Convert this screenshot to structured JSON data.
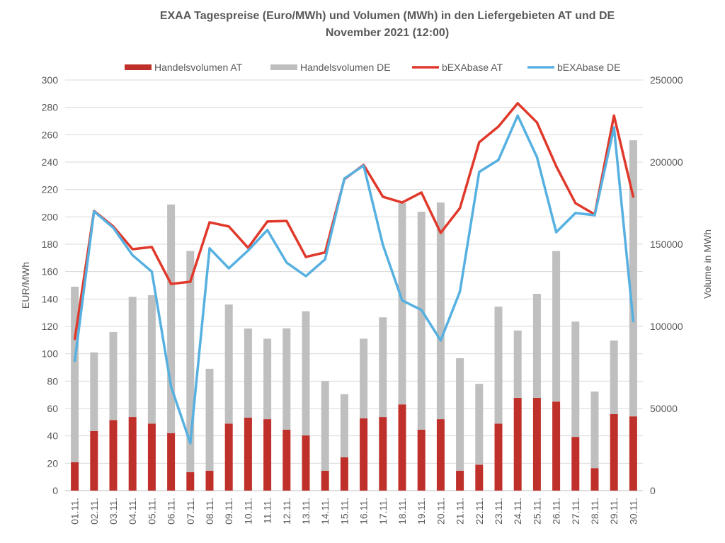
{
  "chart_data": {
    "type": "bar+line",
    "title": "EXAA Tagespreise (Euro/MWh) und Volumen (MWh) in den Liefergebieten AT und DE",
    "subtitle": "November 2021 (12:00)",
    "ylabel": "EUR/MWh",
    "y2label": "Volume in MWh",
    "ylim": [
      0,
      300
    ],
    "y2lim": [
      0,
      250000
    ],
    "yticks": [
      "0",
      "20",
      "40",
      "60",
      "80",
      "100",
      "120",
      "140",
      "160",
      "180",
      "200",
      "220",
      "240",
      "260",
      "280",
      "300"
    ],
    "y2ticks": [
      "0",
      "50000",
      "100000",
      "150000",
      "200000",
      "250000"
    ],
    "grid": true,
    "legend_position": "top",
    "categories": [
      "01.11.",
      "02.11.",
      "03.11.",
      "04.11.",
      "05.11.",
      "06.11.",
      "07.11.",
      "08.11.",
      "09.11.",
      "10.11.",
      "11.11.",
      "12.11.",
      "13.11.",
      "14.11.",
      "15.11.",
      "16.11.",
      "17.11.",
      "18.11.",
      "19.11.",
      "20.11.",
      "21.11.",
      "22.11.",
      "23.11.",
      "24.11.",
      "25.11.",
      "26.11.",
      "27.11.",
      "28.11.",
      "29.11.",
      "30.11."
    ],
    "series": [
      {
        "name": "Handelsvolumen AT",
        "type": "bar",
        "axis": "right",
        "stack": "vol",
        "color": "#c0302a",
        "values": [
          17250,
          36250,
          43000,
          44800,
          40800,
          35000,
          11200,
          12100,
          40800,
          44400,
          43500,
          37100,
          33600,
          12100,
          20300,
          44000,
          44800,
          52500,
          37100,
          43500,
          12100,
          15800,
          40800,
          56500,
          56500,
          54200,
          32700,
          13700,
          46600,
          45200
        ]
      },
      {
        "name": "Handelsvolumen DE",
        "type": "bar",
        "axis": "right",
        "stack": "vol",
        "color": "#bfbfbf",
        "values": [
          106900,
          47900,
          53600,
          73200,
          78200,
          139200,
          134700,
          62100,
          72500,
          54300,
          49000,
          61700,
          75600,
          54600,
          38400,
          48500,
          60700,
          122500,
          132700,
          131900,
          68500,
          49200,
          71200,
          41000,
          63300,
          91700,
          70200,
          46600,
          44800,
          168100
        ]
      },
      {
        "name": "bEXAbase AT",
        "type": "line",
        "axis": "left",
        "color": "#e0392b",
        "values": [
          110.7,
          204.3,
          193,
          176.4,
          178,
          151,
          152.6,
          196,
          193,
          177.4,
          196.6,
          197,
          170.7,
          174,
          227.6,
          238,
          214.7,
          210.5,
          217.8,
          188.3,
          206.4,
          254.5,
          266,
          283,
          269,
          237,
          210,
          201.8,
          274,
          214.7
        ]
      },
      {
        "name": "bEXAbase DE",
        "type": "line",
        "axis": "left",
        "color": "#56b0e0",
        "values": [
          94.7,
          204,
          192,
          172,
          160,
          76,
          34.7,
          177,
          162.4,
          175.4,
          190.4,
          166.6,
          156.7,
          169,
          228,
          237.5,
          179.5,
          139,
          132,
          109.7,
          145.4,
          232.8,
          241.6,
          274,
          243.7,
          188.8,
          202.8,
          201.2,
          265.4,
          123.6
        ]
      }
    ]
  }
}
